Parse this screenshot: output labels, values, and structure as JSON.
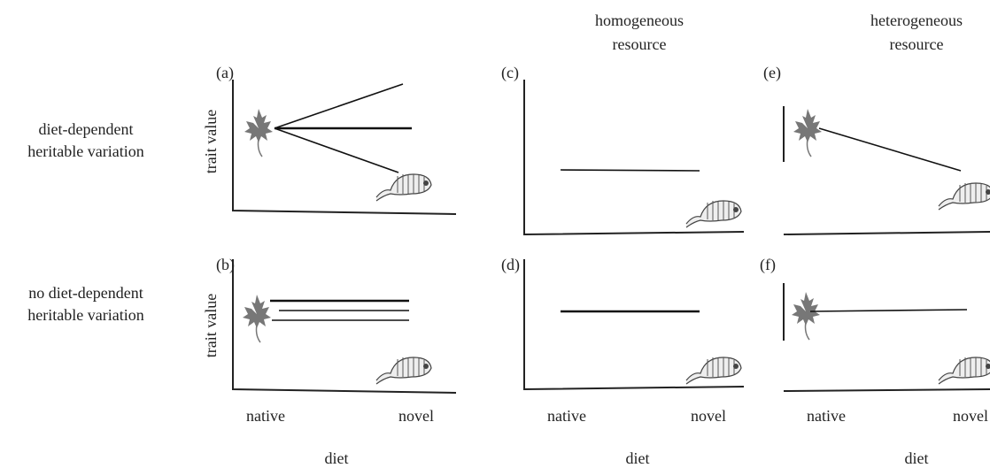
{
  "column_headers": [
    [
      "homogeneous",
      "resource"
    ],
    [
      "heterogeneous",
      "resource"
    ]
  ],
  "row_labels": [
    [
      "diet-dependent",
      "heritable variation"
    ],
    [
      "no diet-dependent",
      "heritable variation"
    ]
  ],
  "panels": [
    {
      "label": "(a)"
    },
    {
      "label": "(b)"
    },
    {
      "label": "(c)"
    },
    {
      "label": "(d)"
    },
    {
      "label": "(e)"
    },
    {
      "label": "(f)"
    }
  ],
  "y_axis_labels": [
    "trait value",
    "trait value"
  ],
  "columns": [
    {
      "x_ticks": [
        "native",
        "novel"
      ],
      "x_label": "diet"
    },
    {
      "x_ticks": [
        "native",
        "novel"
      ],
      "x_label": "diet"
    },
    {
      "x_ticks": [
        "native",
        "novel"
      ],
      "x_label": "diet"
    }
  ]
}
